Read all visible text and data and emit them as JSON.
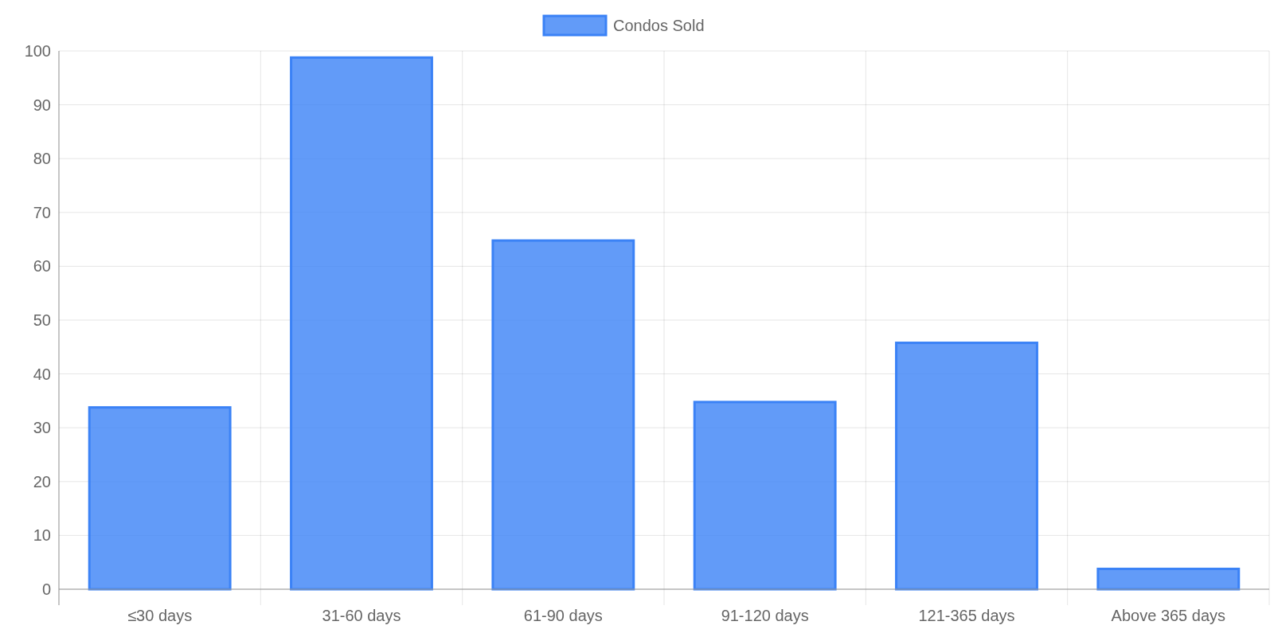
{
  "chart_data": {
    "type": "bar",
    "categories": [
      "≤30 days",
      "31-60 days",
      "61-90 days",
      "91-120 days",
      "121-365 days",
      "Above 365 days"
    ],
    "series": [
      {
        "name": "Condos Sold",
        "color": "#3b82f6",
        "values": [
          34,
          99,
          65,
          35,
          46,
          4
        ]
      }
    ],
    "ylim": [
      0,
      100
    ],
    "yticks": [
      0,
      10,
      20,
      30,
      40,
      50,
      60,
      70,
      80,
      90,
      100
    ],
    "grid": true,
    "legend": "top"
  }
}
